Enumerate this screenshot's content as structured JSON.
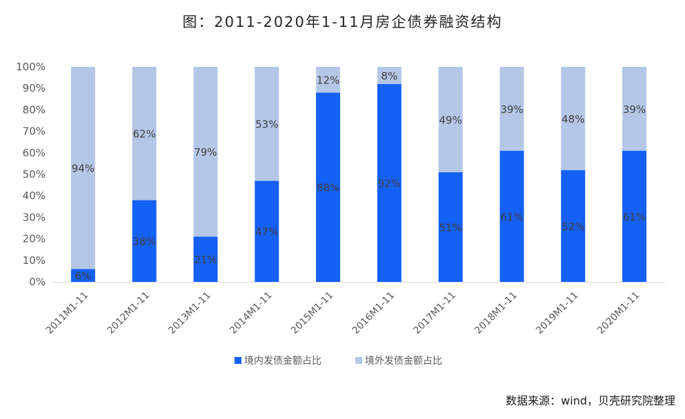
{
  "title": "图：2011-2020年1-11月房企债券融资结构",
  "source": "数据来源：wind，贝壳研究院整理",
  "chart_data": {
    "type": "bar",
    "stacked": true,
    "categories": [
      "2011M1-11",
      "2012M1-11",
      "2013M1-11",
      "2014M1-11",
      "2015M1-11",
      "2016M1-11",
      "2017M1-11",
      "2018M1-11",
      "2019M1-11",
      "2020M1-11"
    ],
    "series": [
      {
        "name": "境内发债金额占比",
        "values": [
          6,
          38,
          21,
          47,
          88,
          92,
          51,
          61,
          52,
          61
        ],
        "labels": [
          "6%",
          "38%",
          "21%",
          "47%",
          "88%",
          "92%",
          "51%",
          "61%",
          "52%",
          "61%"
        ]
      },
      {
        "name": "境外发债金额占比",
        "values": [
          94,
          62,
          79,
          53,
          12,
          8,
          49,
          39,
          48,
          39
        ],
        "labels": [
          "94%",
          "62%",
          "79%",
          "53%",
          "12%",
          "8%",
          "49%",
          "39%",
          "48%",
          "39%"
        ]
      }
    ],
    "yticks": [
      "0%",
      "10%",
      "20%",
      "30%",
      "40%",
      "50%",
      "60%",
      "70%",
      "80%",
      "90%",
      "100%"
    ],
    "ylim": [
      0,
      100
    ],
    "grid": false,
    "legend_position": "bottom",
    "colors": {
      "domestic": "#1560F5",
      "overseas": "#B4C7E7",
      "axis": "#D9D9D9",
      "text": "#595959",
      "label": "#404040"
    }
  }
}
